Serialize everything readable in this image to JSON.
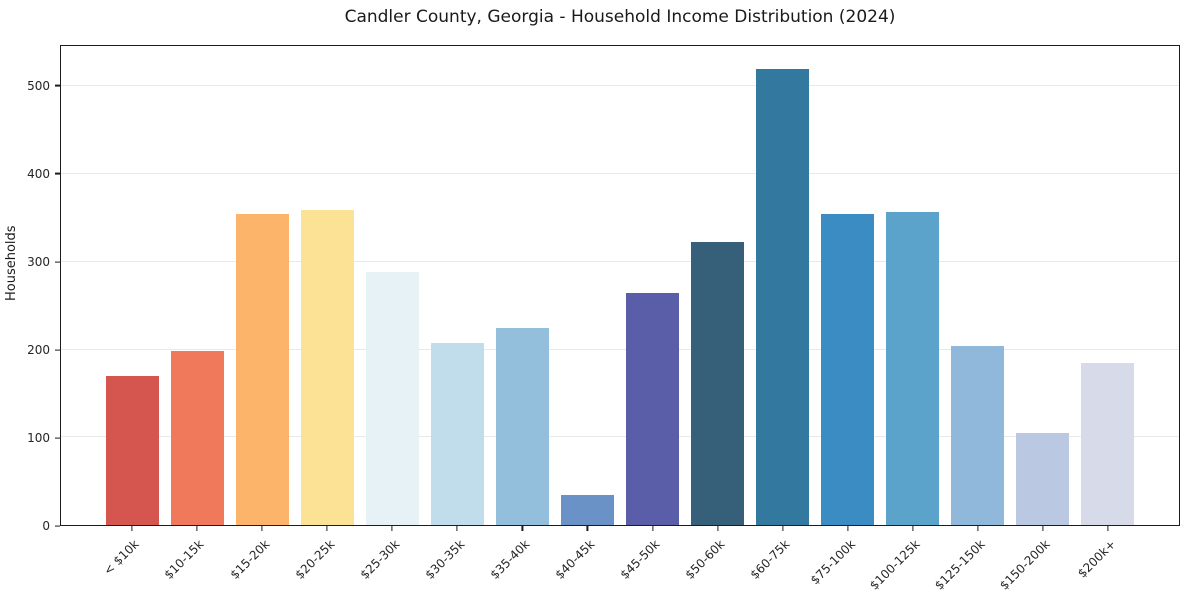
{
  "title": "Candler County, Georgia - Household Income Distribution (2024)",
  "chart_data": {
    "type": "bar",
    "title": "Candler County, Georgia - Household Income Distribution (2024)",
    "xlabel": "",
    "ylabel": "Households",
    "categories": [
      "< $10k",
      "$10-15k",
      "$15-20k",
      "$20-25k",
      "$25-30k",
      "$30-35k",
      "$35-40k",
      "$40-45k",
      "$45-50k",
      "$50-60k",
      "$60-75k",
      "$75-100k",
      "$100-125k",
      "$125-150k",
      "$150-200k",
      "$200k+"
    ],
    "values": [
      170,
      198,
      355,
      359,
      288,
      207,
      225,
      34,
      265,
      323,
      520,
      355,
      357,
      204,
      105,
      185
    ],
    "bar_colors": [
      "#d4564e",
      "#f0795b",
      "#fbb469",
      "#fce294",
      "#e7f2f6",
      "#c1ddec",
      "#93bfdc",
      "#6b92c6",
      "#5a5ea9",
      "#36607a",
      "#32789f",
      "#3a8cc2",
      "#5ba3ca",
      "#90b8da",
      "#bac8e1",
      "#d7dae8"
    ],
    "yticks": [
      0,
      100,
      200,
      300,
      400,
      500
    ],
    "ylim": [
      0,
      546
    ],
    "grid": "horizontal-gridlines-on",
    "legend": "none",
    "background_color": "#ffffff",
    "gridline_color": "#e9e9e9",
    "spine_color": "#1c1c1c",
    "text_color": "#262626"
  }
}
